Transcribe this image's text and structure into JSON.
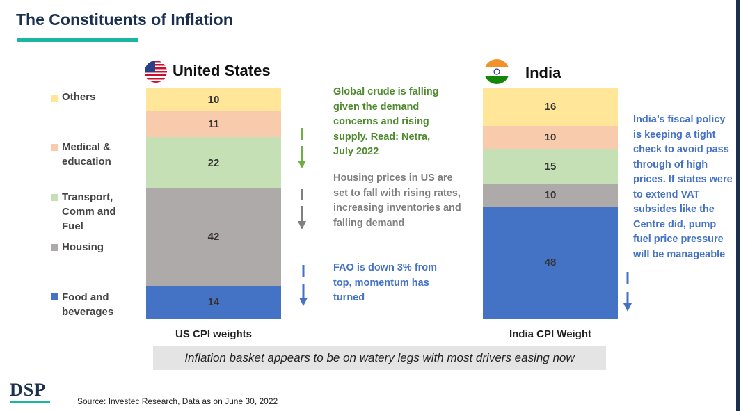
{
  "title": "The Constituents of Inflation",
  "banner": "Inflation basket appears to be on watery legs with most drivers easing now",
  "source": "Source: Investec Research, Data as on June 30, 2022",
  "logo_text": "DSP",
  "colors": {
    "others": "#ffe699",
    "medical": "#f8cbad",
    "transport": "#c5e0b4",
    "housing": "#aeaaaa",
    "food": "#4472c4",
    "title": "#1b2f4e",
    "accent": "#1bb5a0"
  },
  "legend": [
    {
      "key": "others",
      "label": "Others"
    },
    {
      "key": "medical",
      "label": "Medical & education"
    },
    {
      "key": "transport",
      "label": "Transport, Comm and Fuel"
    },
    {
      "key": "housing",
      "label": "Housing"
    },
    {
      "key": "food",
      "label": "Food and beverages"
    }
  ],
  "chart_data": [
    {
      "type": "bar",
      "stacked": true,
      "title": "United States",
      "xlabel": "US CPI weights",
      "categories": [
        "US CPI weights"
      ],
      "series": [
        {
          "name": "Food and beverages",
          "values": [
            14
          ]
        },
        {
          "name": "Housing",
          "values": [
            42
          ]
        },
        {
          "name": "Transport, Comm and Fuel",
          "values": [
            22
          ]
        },
        {
          "name": "Medical & education",
          "values": [
            11
          ]
        },
        {
          "name": "Others",
          "values": [
            10
          ]
        }
      ],
      "ylim": [
        0,
        99
      ]
    },
    {
      "type": "bar",
      "stacked": true,
      "title": "India",
      "xlabel": "India CPI Weight",
      "categories": [
        "India CPI Weight"
      ],
      "series": [
        {
          "name": "Food and beverages",
          "values": [
            48
          ]
        },
        {
          "name": "Housing",
          "values": [
            10
          ]
        },
        {
          "name": "Transport, Comm and Fuel",
          "values": [
            15
          ]
        },
        {
          "name": "Medical & education",
          "values": [
            10
          ]
        },
        {
          "name": "Others",
          "values": [
            16
          ]
        }
      ],
      "ylim": [
        0,
        99
      ]
    }
  ],
  "notes": {
    "crude": {
      "text": "Global crude is falling given the demand concerns and rising supply. Read: Netra, July 2022",
      "color": "#4e8a2e"
    },
    "housing": {
      "text": "Housing prices  in US are set to fall with rising rates, increasing inventories and falling demand",
      "color": "#7f7f7f"
    },
    "fao": {
      "text": "FAO is down 3% from top, momentum has turned",
      "color": "#4472c4"
    },
    "india": {
      "text": "India’s fiscal policy is keeping a tight check to avoid pass through of high prices. If states were to extend VAT subsides like the Centre did, pump fuel price pressure will be manageable",
      "color": "#4472c4"
    }
  }
}
